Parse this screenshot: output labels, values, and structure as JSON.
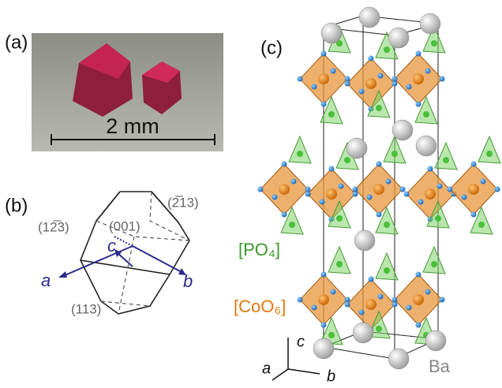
{
  "panel_a": {
    "label": "(a)",
    "scale_bar": "2 mm"
  },
  "panel_b": {
    "label": "(b)",
    "faces": [
      "(12̅3)",
      "(001)",
      "(2̅13)",
      "(113)"
    ],
    "axes": [
      "c",
      "a",
      "b"
    ]
  },
  "panel_c": {
    "label": "(c)",
    "polyhedra": [
      "[PO₄]",
      "[CoO₆]"
    ],
    "axes": [
      "c",
      "a",
      "b"
    ],
    "atom": "Ba"
  }
}
